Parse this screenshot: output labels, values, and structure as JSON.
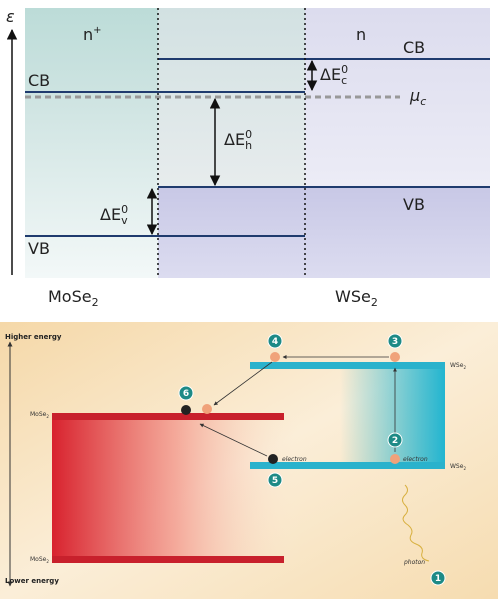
{
  "band_diagram": {
    "axis_label": "ε",
    "left_region": "n",
    "left_region_sup": "+",
    "right_region": "n",
    "cb_right": "CB",
    "cb_left": "CB",
    "delta_ec": {
      "base": "ΔE",
      "sub": "c",
      "sup": "0"
    },
    "mu": {
      "base": "μ",
      "sub": "c"
    },
    "delta_eh": {
      "base": "ΔE",
      "sub": "h",
      "sup": "0"
    },
    "delta_ev": {
      "base": "ΔE",
      "sub": "v",
      "sup": "0"
    },
    "vb_right": "VB",
    "vb_left": "VB",
    "left_material": {
      "base": "MoSe",
      "sub": "2"
    },
    "right_material": {
      "base": "WSe",
      "sub": "2"
    }
  },
  "process_diagram": {
    "higher_energy": "Higher energy",
    "lower_energy": "Lower energy",
    "mose2_top": {
      "base": "MoSe",
      "sub": "2"
    },
    "mose2_bottom": {
      "base": "MoSe",
      "sub": "2"
    },
    "wse2_top": {
      "base": "WSe",
      "sub": "2"
    },
    "wse2_bottom": {
      "base": "WSe",
      "sub": "2"
    },
    "electron_left": "electron",
    "electron_right": "electron",
    "photon": "photon",
    "steps": [
      "1",
      "2",
      "3",
      "4",
      "5",
      "6"
    ]
  }
}
